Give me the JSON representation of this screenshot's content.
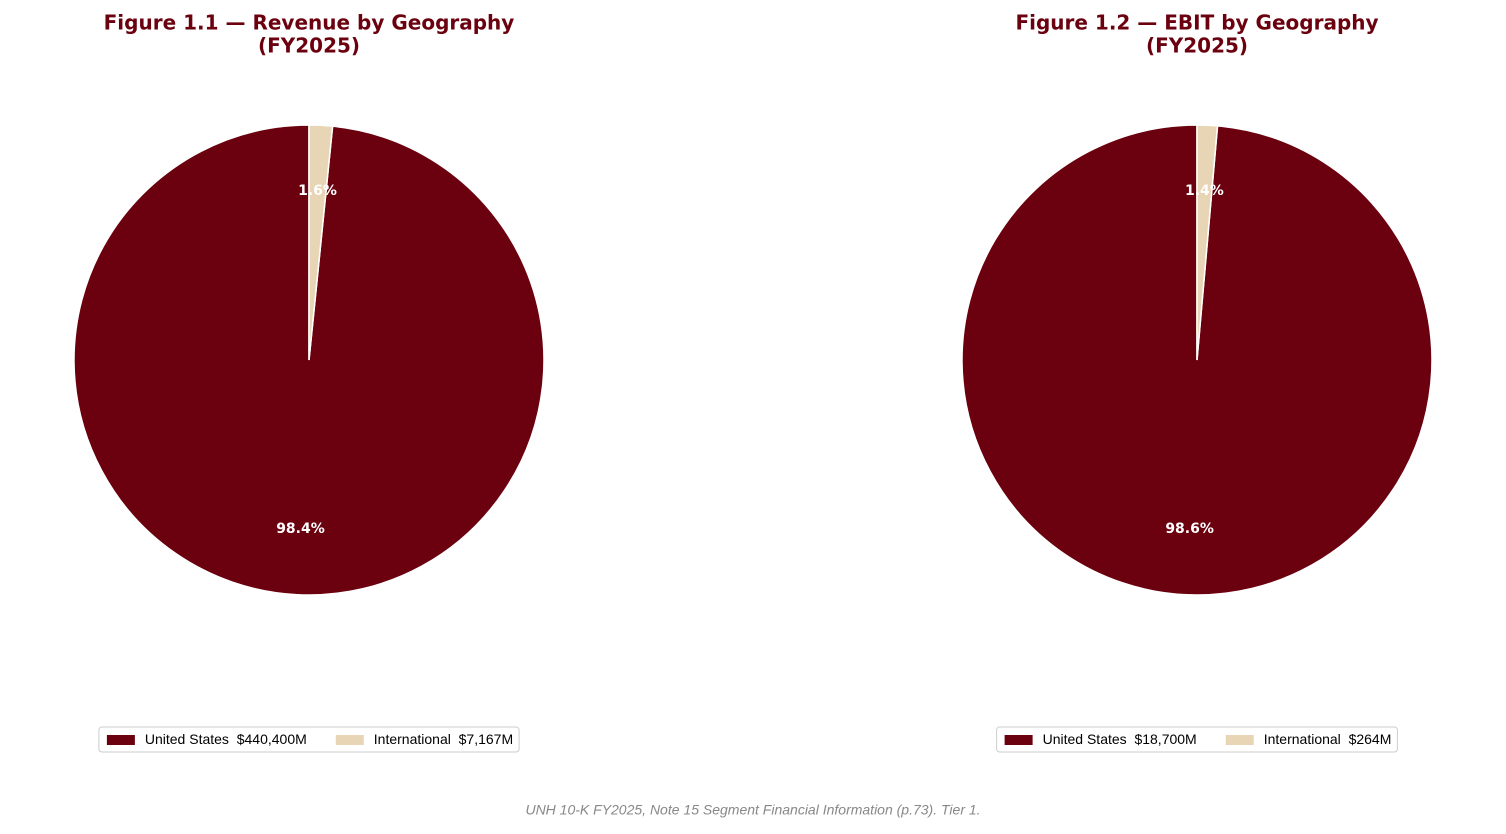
{
  "chart_data": [
    {
      "type": "pie",
      "title": "Figure 1.1 — Revenue by Geography",
      "subtitle": "(FY2025)",
      "categories": [
        "United States",
        "International"
      ],
      "values": [
        440400,
        7167
      ],
      "value_labels": [
        "$440,400M",
        "$7,167M"
      ],
      "percents": [
        98.4,
        1.6
      ],
      "percent_labels": [
        "98.4%",
        "1.6%"
      ],
      "colors": [
        "#6b000f",
        "#e8d5b5"
      ],
      "legend": "bottom"
    },
    {
      "type": "pie",
      "title": "Figure 1.2 — EBIT by Geography",
      "subtitle": "(FY2025)",
      "categories": [
        "United States",
        "International"
      ],
      "values": [
        18700,
        264
      ],
      "value_labels": [
        "$18,700M",
        "$264M"
      ],
      "percents": [
        98.6,
        1.4
      ],
      "percent_labels": [
        "98.6%",
        "1.4%"
      ],
      "colors": [
        "#6b000f",
        "#e8d5b5"
      ],
      "legend": "bottom"
    }
  ],
  "footer": "UNH 10-K FY2025, Note 15 Segment Financial Information (p.73). Tier 1."
}
